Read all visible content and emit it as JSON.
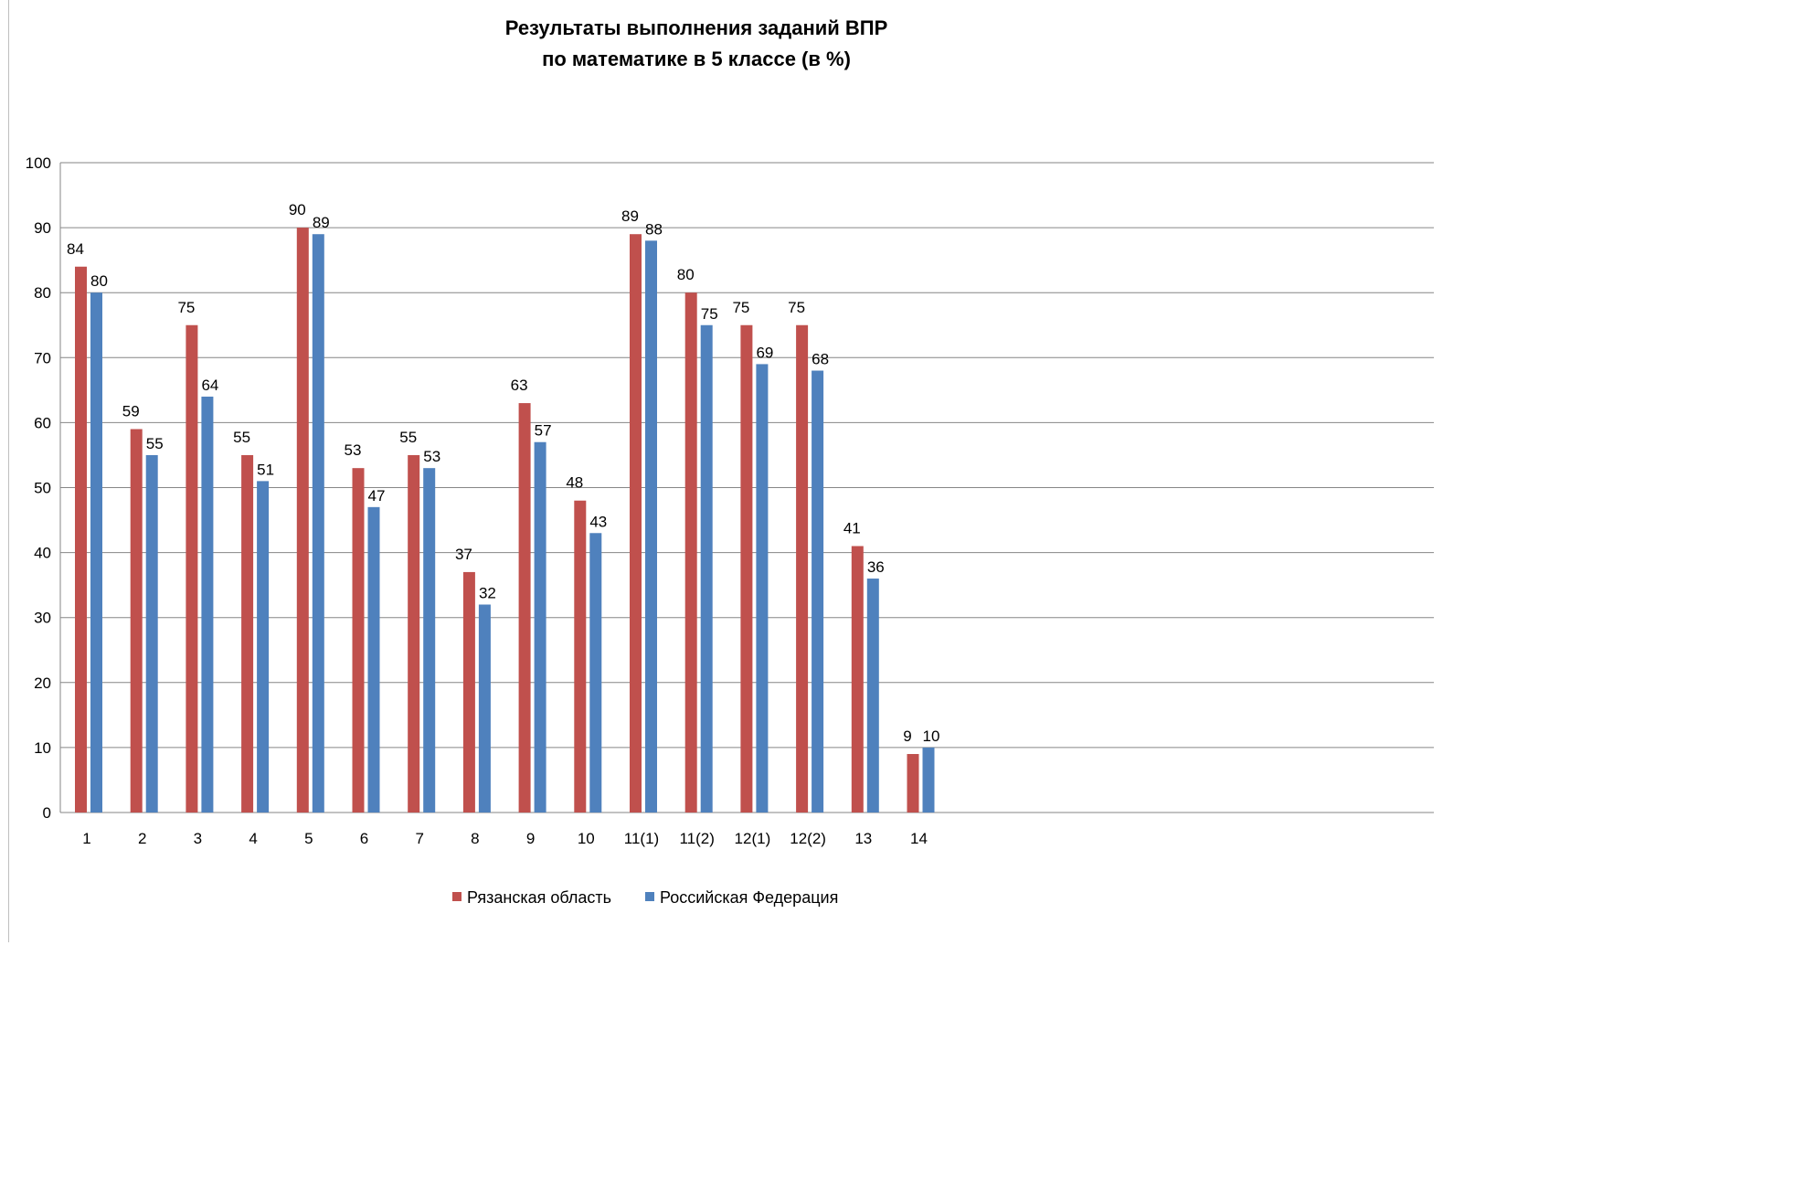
{
  "chart_data": {
    "type": "bar",
    "title": "Результаты выполнения заданий ВПР",
    "subtitle": "по математике в 5 классе (в %)",
    "xlabel": "",
    "ylabel": "",
    "ylim": [
      0,
      100
    ],
    "ytick_step": 10,
    "yticks": [
      "0",
      "10",
      "20",
      "30",
      "40",
      "50",
      "60",
      "70",
      "80",
      "90",
      "100"
    ],
    "grid": true,
    "legend_position": "bottom",
    "categories": [
      "1",
      "2",
      "3",
      "4",
      "5",
      "6",
      "7",
      "8",
      "9",
      "10",
      "11(1)",
      "11(2)",
      "12(1)",
      "12(2)",
      "13",
      "14"
    ],
    "series": [
      {
        "name": "Рязанская область",
        "color": "#c0504d",
        "values": [
          84,
          59,
          75,
          55,
          90,
          53,
          55,
          37,
          63,
          48,
          89,
          80,
          75,
          75,
          41,
          9
        ]
      },
      {
        "name": "Российская Федерация",
        "color": "#4f81bd",
        "values": [
          80,
          55,
          64,
          51,
          89,
          47,
          53,
          32,
          57,
          43,
          88,
          75,
          69,
          68,
          36,
          10
        ]
      }
    ]
  }
}
